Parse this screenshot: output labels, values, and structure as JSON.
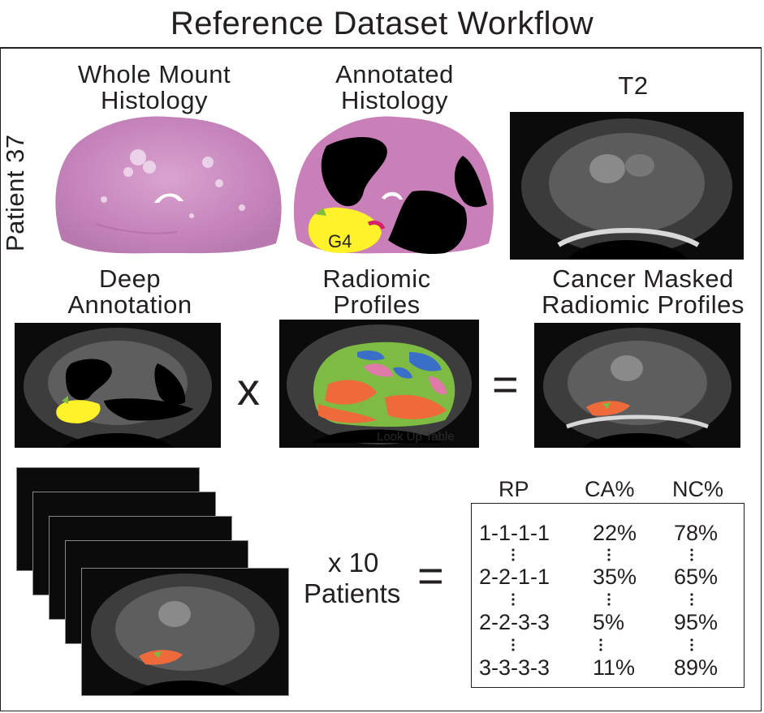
{
  "title": "Reference Dataset Workflow",
  "patient_label": "Patient 37",
  "panels": {
    "histology": "Whole Mount Histology",
    "histology_line1": "Whole Mount",
    "histology_line2": "Histology",
    "annotated_line1": "Annotated",
    "annotated_line2": "Histology",
    "t2": "T2",
    "deep_line1": "Deep",
    "deep_line2": "Annotation",
    "radiomic_line1": "Radiomic",
    "radiomic_line2": "Profiles",
    "masked_line1": "Cancer Masked",
    "masked_line2": "Radiomic Profiles"
  },
  "annotation_label": "G4",
  "watermark": "Look Up Table",
  "operators": {
    "times": "x",
    "equals": "=",
    "equals2": "="
  },
  "patients": {
    "line1": "x 10",
    "line2": "Patients"
  },
  "table": {
    "headers": [
      "RP",
      "CA%",
      "NC%"
    ],
    "rows": [
      {
        "rp": "1-1-1-1",
        "ca": "22%",
        "nc": "78%"
      },
      {
        "rp": "2-2-1-1",
        "ca": "35%",
        "nc": "65%"
      },
      {
        "rp": "2-2-3-3",
        "ca": "5%",
        "nc": "95%"
      },
      {
        "rp": "3-3-3-3",
        "ca": "11%",
        "nc": "89%"
      }
    ]
  },
  "colors": {
    "histology": "#c97fb8",
    "tumor_black": "#000000",
    "grade4": "#fff12a",
    "green": "#7dbb43",
    "red_orange": "#ef6a3a",
    "blue": "#3a6fc7",
    "pink": "#e07aa8"
  }
}
